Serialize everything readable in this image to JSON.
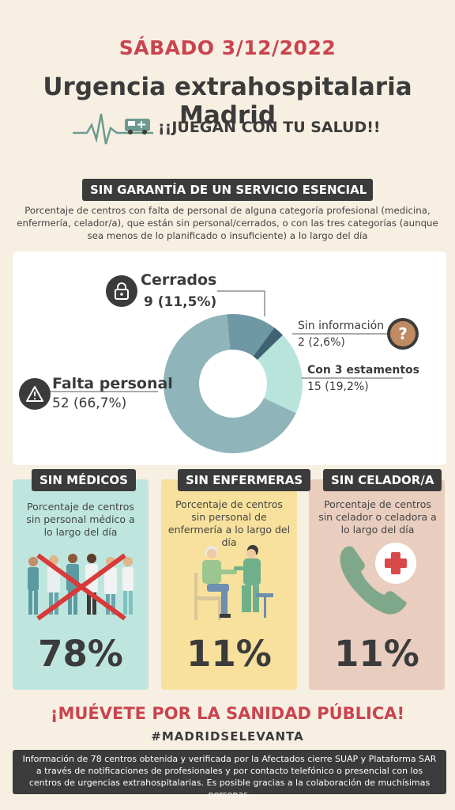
{
  "header": {
    "date": "SÁBADO 3/12/2022",
    "title": "Urgencia extrahospitalaria Madrid",
    "slogan": "¡¡JUEGAN CON TU SALUD!!"
  },
  "section": {
    "banner": "SIN GARANTÍA DE UN SERVICIO  ESENCIAL",
    "intro": "Porcentaje de centros con falta de personal de alguna categoría profesional (medicina, enfermería, celador/a), que están sin personal/cerrados, o con las tres categorías (aunque sea menos de lo planificado o insuficiente) a lo largo del día"
  },
  "chart_data": {
    "type": "pie",
    "categories": [
      "Falta personal",
      "Cerrados",
      "Sin información",
      "Con 3 estamentos"
    ],
    "values": [
      52,
      9,
      2,
      15
    ],
    "value_labels": [
      "52 (66,7%)",
      "9 (11,5%)",
      "2 (2,6%)",
      "15 (19,2%)"
    ],
    "colors": [
      "#8fb5ba",
      "#6e98a3",
      "#3f6273",
      "#b9e4dc"
    ],
    "donut": true
  },
  "panels": [
    {
      "title": "SIN MÉDICOS",
      "text": "Porcentaje de centros sin personal médico a lo largo del día",
      "percent": "78%",
      "bg": "#bfe6de"
    },
    {
      "title": "SIN ENFERMERAS",
      "text": "Porcentaje de centros sin personal de enfermería a lo largo del día",
      "percent": "11%",
      "bg": "#f7e19c"
    },
    {
      "title": "SIN CELADOR/A",
      "text": "Porcentaje de centros sin celador o celadora a lo largo del día",
      "percent": "11%",
      "bg": "#e9cdbf"
    }
  ],
  "cta": "¡MUÉVETE POR LA SANIDAD PÚBLICA!",
  "hashtag": "#MADRIDSELEVANTA",
  "footer": "Información de 78 centros obtenida y verificada por la Afectados cierre SUAP y Plataforma SAR a través de notificaciones de profesionales y por contacto telefónico o presencial con los centros de urgencias extrahospitalarias. Es posible gracias a la colaboración de muchísimas personas.",
  "icons": [
    "heartbeat-ambulance-icon",
    "lock-icon",
    "question-icon",
    "warning-icon",
    "medical-staff-illustration",
    "nurse-patient-illustration",
    "phone-cross-icon"
  ]
}
